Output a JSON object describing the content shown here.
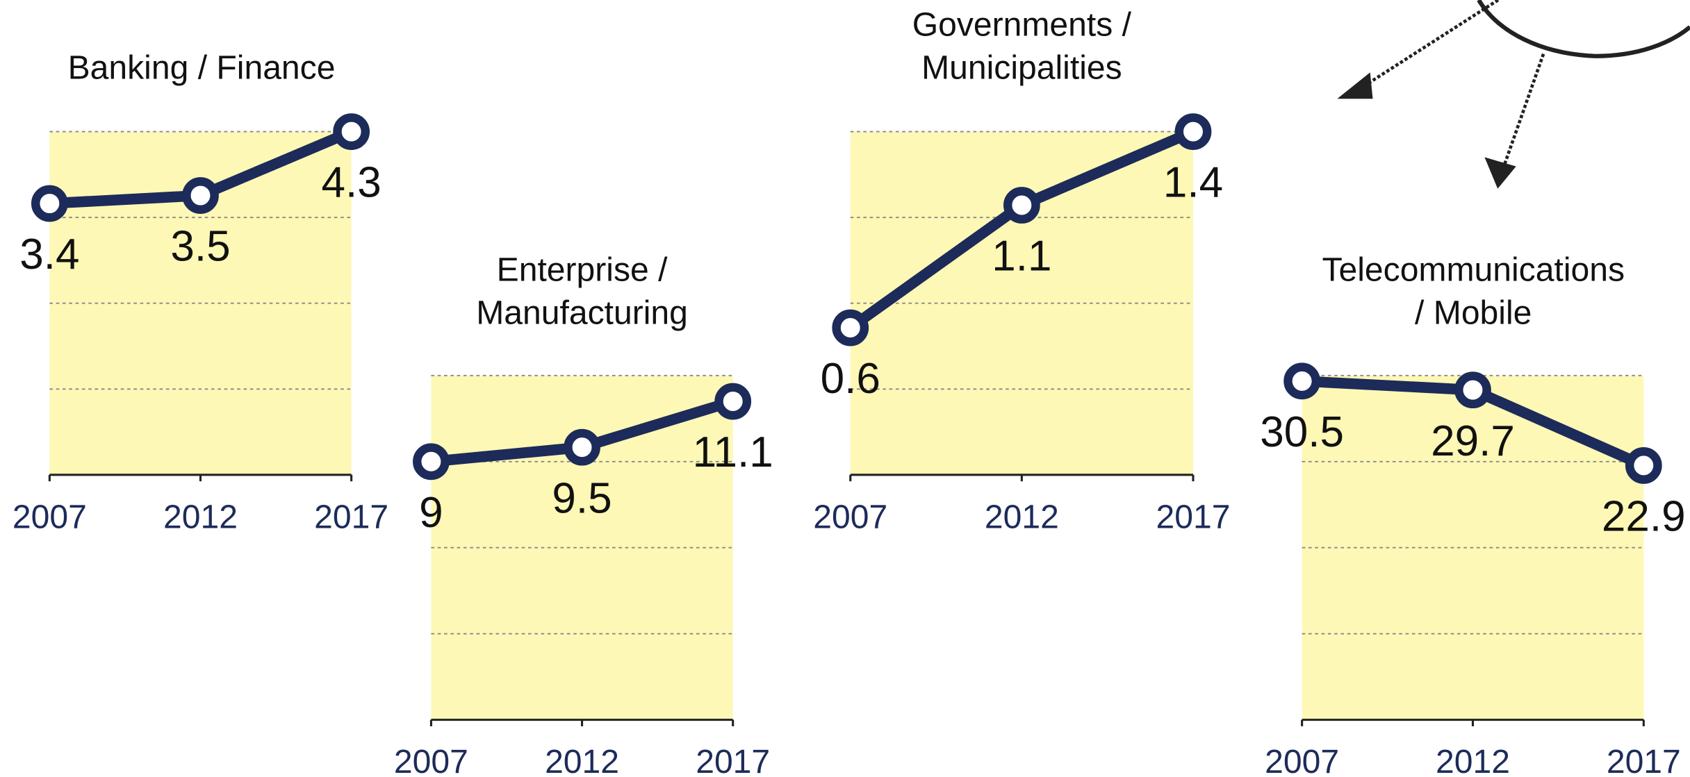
{
  "chart_data": [
    {
      "type": "line",
      "title": [
        "Banking / Finance"
      ],
      "categories": [
        "2007",
        "2012",
        "2017"
      ],
      "values": [
        3.4,
        3.5,
        4.3
      ],
      "color": "#1c2b5a",
      "background": "#fdf8b5",
      "ylim": [
        0,
        4.3
      ],
      "yticks": [
        0,
        1.075,
        2.15,
        3.225,
        4.3
      ],
      "grid": true
    },
    {
      "type": "line",
      "title": [
        "Enterprise /",
        "Manufacturing"
      ],
      "categories": [
        "2007",
        "2012",
        "2017"
      ],
      "values": [
        9,
        9.5,
        11.1
      ],
      "color": "#1c2b5a",
      "background": "#fdf8b5",
      "ylim": [
        0,
        12
      ],
      "yticks": [
        0,
        3,
        6,
        9,
        12
      ],
      "grid": true
    },
    {
      "type": "line",
      "title": [
        "Governments /",
        "Municipalities"
      ],
      "categories": [
        "2007",
        "2012",
        "2017"
      ],
      "values": [
        0.6,
        1.1,
        1.4
      ],
      "color": "#1c2b5a",
      "background": "#fdf8b5",
      "ylim": [
        0,
        1.4
      ],
      "yticks": [
        0,
        0.35,
        0.7,
        1.05,
        1.4
      ],
      "grid": true
    },
    {
      "type": "line",
      "title": [
        "Telecommunications",
        "/ Mobile"
      ],
      "categories": [
        "2007",
        "2012",
        "2017"
      ],
      "values": [
        30.5,
        29.7,
        22.9
      ],
      "color": "#1c2b5a",
      "background": "#fdf8b5",
      "ylim": [
        0,
        31
      ],
      "yticks": [
        0,
        7.75,
        15.5,
        23.25,
        31
      ],
      "grid": true
    }
  ]
}
